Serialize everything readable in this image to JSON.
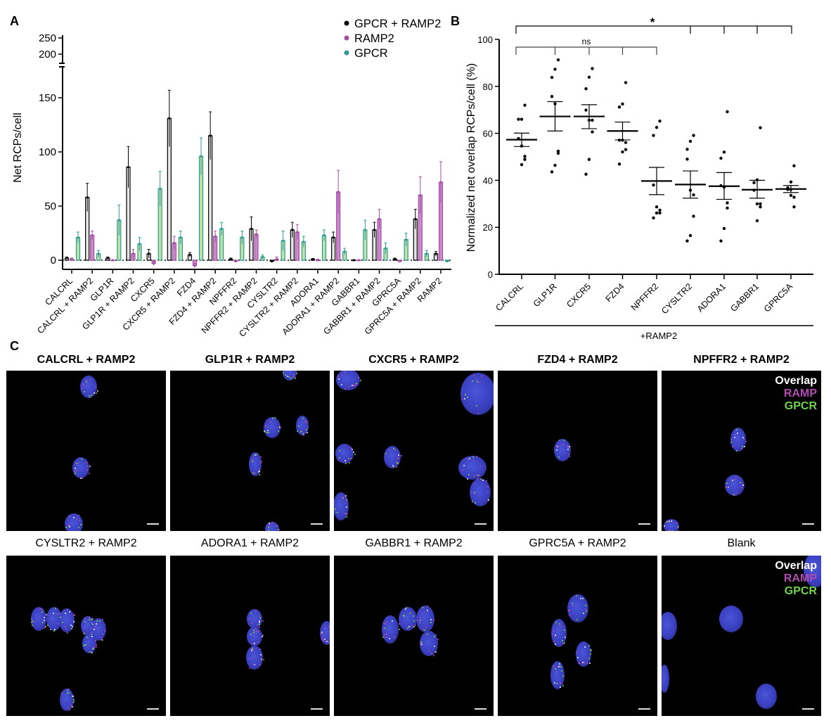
{
  "panels": {
    "a": "A",
    "b": "B",
    "c": "C"
  },
  "chart_data": [
    {
      "type": "bar",
      "panel": "A",
      "ylabel": "Net RCPs/cell",
      "ylim": [
        -10,
        250
      ],
      "axis_break": [
        180,
        190
      ],
      "yticks": [
        "0",
        "50",
        "100",
        "150",
        "200",
        "250"
      ],
      "legend": {
        "placement": "top-right",
        "entries": [
          "GPCR + RAMP2",
          "RAMP2",
          "GPCR"
        ]
      },
      "categories": [
        "CALCRL",
        "CALCRL + RAMP2",
        "GLP1R",
        "GLP1R + RAMP2",
        "CXCR5",
        "CXCR5 + RAMP2",
        "FZD4",
        "FZD4 + RAMP2",
        "NPFFR2",
        "NPFFR2 + RAMP2",
        "CYSLTR2",
        "CYSLTR2 + RAMP2",
        "ADORA1",
        "ADORA1 + RAMP2",
        "GABBR1",
        "GABBR1 + RAMP2",
        "GPRC5A",
        "GPRC5A + RAMP2",
        "RAMP2"
      ],
      "series": [
        {
          "name": "GPCR + RAMP2",
          "color": "#000000",
          "values": [
            2,
            58,
            2,
            86,
            6,
            131,
            5,
            115,
            1,
            29,
            -1,
            28,
            1,
            21,
            0,
            28,
            1,
            38,
            6
          ],
          "sem": [
            1,
            13,
            1,
            19,
            4,
            26,
            2,
            22,
            1,
            11,
            1,
            7,
            0.5,
            5,
            0.5,
            7,
            1,
            9,
            2
          ]
        },
        {
          "name": "RAMP2",
          "color": "#a54ea3",
          "values": [
            1,
            23,
            0,
            6,
            -3,
            16,
            -5,
            22,
            -1,
            24,
            1,
            26,
            0,
            63,
            0,
            38,
            -1,
            60,
            72
          ],
          "sem": [
            1,
            4,
            0.5,
            4,
            2,
            6,
            2,
            5,
            1,
            4,
            2,
            7,
            1,
            20,
            0.5,
            9,
            1,
            17,
            19
          ]
        },
        {
          "name": "GPCR",
          "color": "#2c9a94",
          "values": [
            21,
            6,
            37,
            15,
            66,
            21,
            96,
            29,
            21,
            3,
            18,
            17,
            23,
            8,
            28,
            11,
            19,
            6,
            -1
          ],
          "sem": [
            5,
            3,
            14,
            6,
            16,
            6,
            17,
            6,
            6,
            2,
            9,
            5,
            5,
            3,
            9,
            5,
            6,
            3,
            0.5
          ]
        }
      ],
      "zero_line": "dotted"
    },
    {
      "type": "scatter",
      "panel": "B",
      "ylabel": "Normalized net overlap RCPs/cell (%)",
      "xlabel": "+RAMP2",
      "ylim": [
        0,
        100
      ],
      "yticks": [
        "0",
        "20",
        "40",
        "60",
        "80",
        "100"
      ],
      "categories": [
        "CALCRL",
        "GLP1R",
        "CXCR5",
        "FZD4",
        "NPFFR2",
        "CYSLTR2",
        "ADORA1",
        "GABBR1",
        "GPRC5A"
      ],
      "groups": [
        {
          "points": [
            72,
            66,
            66,
            57.8,
            54.6,
            50.2,
            48.9,
            46.7
          ],
          "mean": 57.3,
          "sem_low": 54.4,
          "sem_high": 60.1
        },
        {
          "points": [
            91.3,
            87.3,
            83.8,
            75.7,
            72.6,
            52.4,
            51.5,
            46.4,
            43.6
          ],
          "mean": 67.2,
          "sem_low": 61,
          "sem_high": 73.5
        },
        {
          "points": [
            87.6,
            83.9,
            79,
            69.9,
            65.6,
            65.6,
            60.6,
            48.9,
            42.6
          ],
          "mean": 67.2,
          "sem_low": 62,
          "sem_high": 72.2
        },
        {
          "points": [
            81.6,
            72.5,
            71.2,
            57.1,
            57.1,
            56.1,
            53.1,
            52.1,
            46.9
          ],
          "mean": 61,
          "sem_low": 57.2,
          "sem_high": 64.8
        },
        {
          "points": [
            65.2,
            62.5,
            59.1,
            38,
            28.7,
            27.3,
            26.1,
            26.1,
            24
          ],
          "mean": 39.7,
          "sem_low": 33.9,
          "sem_high": 45.5
        },
        {
          "points": [
            59.1,
            56.6,
            53.2,
            49,
            35.8,
            33.8,
            24.7,
            16.5,
            14.2
          ],
          "mean": 38.2,
          "sem_low": 32.4,
          "sem_high": 44
        },
        {
          "points": [
            69.2,
            52,
            49.4,
            37.7,
            37.1,
            30.4,
            28.2,
            19.5,
            14.2
          ],
          "mean": 37.5,
          "sem_low": 31.9,
          "sem_high": 43.3
        },
        {
          "points": [
            62.4,
            40.2,
            39,
            35.8,
            30,
            28.7,
            30,
            22.8
          ],
          "mean": 36,
          "sem_low": 32.4,
          "sem_high": 40
        },
        {
          "points": [
            46.2,
            39.3,
            36.8,
            36.1,
            33.6,
            32.8,
            28.7,
            36.1
          ],
          "mean": 36.3,
          "sem_low": 34.8,
          "sem_high": 37.8
        }
      ],
      "significance": [
        {
          "label": "*",
          "from": "CALCRL",
          "to": [
            "CYSLTR2",
            "ADORA1",
            "GABBR1",
            "GPRC5A"
          ]
        },
        {
          "label": "ns",
          "from": "CALCRL",
          "to": [
            "GLP1R",
            "CXCR5",
            "FZD4",
            "NPFFR2"
          ]
        }
      ]
    }
  ],
  "micrographs": {
    "overlay_legend": {
      "overlap": "Overlap",
      "ramp": "RAMP",
      "gpcr": "GPCR",
      "colors": {
        "overlap": "#ffffff",
        "ramp": "#b24cb0",
        "gpcr": "#6fd44a"
      }
    },
    "items": [
      {
        "title": "CALCRL + RAMP2",
        "bold": true
      },
      {
        "title": "GLP1R + RAMP2",
        "bold": true
      },
      {
        "title": "CXCR5 + RAMP2",
        "bold": true
      },
      {
        "title": "FZD4 + RAMP2",
        "bold": true
      },
      {
        "title": "NPFFR2 + RAMP2",
        "bold": true,
        "legend": true
      },
      {
        "title": "CYSLTR2 + RAMP2",
        "bold": false
      },
      {
        "title": "ADORA1 + RAMP2",
        "bold": false
      },
      {
        "title": "GABBR1 + RAMP2",
        "bold": false
      },
      {
        "title": "GPRC5A + RAMP2",
        "bold": false
      },
      {
        "title": "Blank",
        "bold": false,
        "legend": true
      }
    ]
  }
}
